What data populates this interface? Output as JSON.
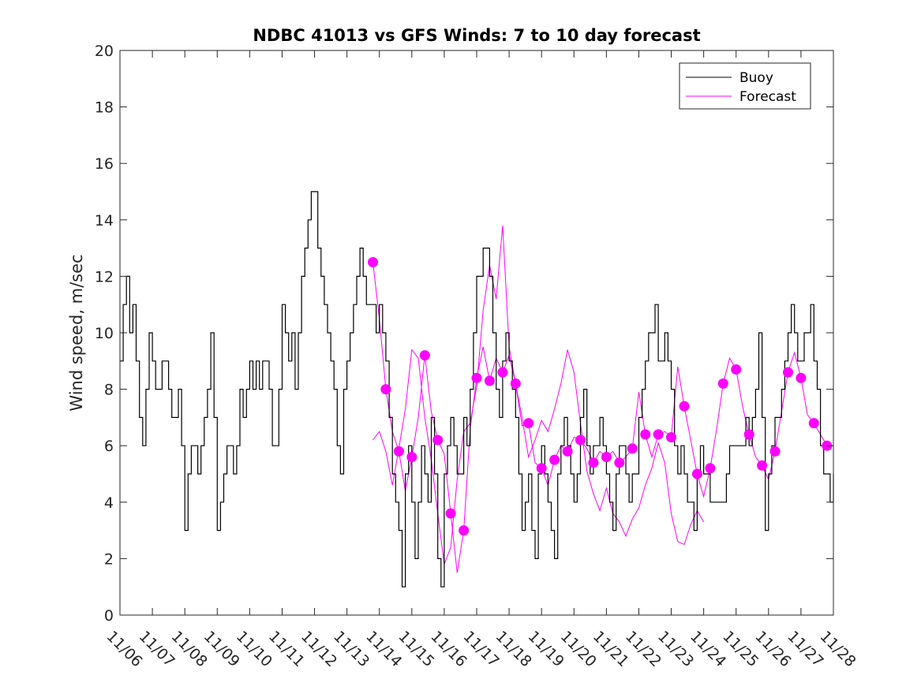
{
  "chart_data": {
    "type": "line",
    "title": "NDBC 41013 vs GFS Winds: 7 to 10 day forecast",
    "xlabel": "",
    "ylabel": "Wind speed, m/sec",
    "xlim": [
      0,
      22
    ],
    "ylim": [
      0,
      20
    ],
    "yticks": [
      0,
      2,
      4,
      6,
      8,
      10,
      12,
      14,
      16,
      18,
      20
    ],
    "xtick_labels": [
      "11/06",
      "11/07",
      "11/08",
      "11/09",
      "11/10",
      "11/11",
      "11/12",
      "11/13",
      "11/14",
      "11/15",
      "11/16",
      "11/17",
      "11/18",
      "11/19",
      "11/20",
      "11/21",
      "11/22",
      "11/23",
      "11/24",
      "11/25",
      "11/26",
      "11/27",
      "11/28"
    ],
    "legend": {
      "position": "top-right",
      "entries": [
        "Buoy",
        "Forecast"
      ]
    },
    "colors": {
      "buoy": "#000000",
      "forecast": "#ff00ff"
    },
    "series": [
      {
        "name": "Buoy",
        "x": [
          0,
          0.1,
          0.2,
          0.3,
          0.4,
          0.5,
          0.6,
          0.7,
          0.8,
          0.9,
          1,
          1.1,
          1.2,
          1.3,
          1.4,
          1.5,
          1.6,
          1.7,
          1.8,
          1.9,
          2,
          2.1,
          2.2,
          2.3,
          2.4,
          2.5,
          2.6,
          2.7,
          2.8,
          2.9,
          3,
          3.1,
          3.2,
          3.3,
          3.4,
          3.5,
          3.6,
          3.7,
          3.8,
          3.9,
          4,
          4.1,
          4.2,
          4.3,
          4.4,
          4.5,
          4.6,
          4.7,
          4.8,
          4.9,
          5,
          5.1,
          5.2,
          5.3,
          5.4,
          5.5,
          5.6,
          5.7,
          5.8,
          5.9,
          6,
          6.1,
          6.2,
          6.3,
          6.4,
          6.5,
          6.6,
          6.7,
          6.8,
          6.9,
          7,
          7.1,
          7.2,
          7.3,
          7.4,
          7.5,
          7.6,
          7.7,
          7.8,
          7.9,
          8,
          8.1,
          8.2,
          8.3,
          8.4,
          8.5,
          8.6,
          8.7,
          8.8,
          8.9,
          9,
          9.1,
          9.2,
          9.3,
          9.4,
          9.5,
          9.6,
          9.7,
          9.8,
          9.9,
          10,
          10.1,
          10.2,
          10.3,
          10.4,
          10.5,
          10.6,
          10.7,
          10.8,
          10.9,
          11,
          11.1,
          11.2,
          11.3,
          11.4,
          11.5,
          11.6,
          11.7,
          11.8,
          11.9,
          12,
          12.1,
          12.2,
          12.3,
          12.4,
          12.5,
          12.6,
          12.7,
          12.8,
          12.9,
          13,
          13.1,
          13.2,
          13.3,
          13.4,
          13.5,
          13.6,
          13.7,
          13.8,
          13.9,
          14,
          14.1,
          14.2,
          14.3,
          14.4,
          14.5,
          14.6,
          14.7,
          14.8,
          14.9,
          15,
          15.1,
          15.2,
          15.3,
          15.4,
          15.5,
          15.6,
          15.7,
          15.8,
          15.9,
          16,
          16.1,
          16.2,
          16.3,
          16.4,
          16.5,
          16.6,
          16.7,
          16.8,
          16.9,
          17,
          17.1,
          17.2,
          17.3,
          17.4,
          17.5,
          17.6,
          17.7,
          17.8,
          17.9,
          18,
          18.1,
          18.2,
          18.3,
          18.4,
          18.5,
          18.6,
          18.7,
          18.8,
          18.9,
          19,
          19.1,
          19.2,
          19.3,
          19.4,
          19.5,
          19.6,
          19.7,
          19.8,
          19.9,
          20,
          20.1,
          20.2,
          20.3,
          20.4,
          20.5,
          20.6,
          20.7,
          20.8,
          20.9,
          21,
          21.1,
          21.2,
          21.3,
          21.4,
          21.5,
          21.6,
          21.7,
          21.8,
          21.9,
          22
        ],
        "values": [
          9,
          11,
          12,
          10,
          11,
          9,
          7,
          6,
          8,
          10,
          9,
          8,
          8,
          9,
          9,
          8,
          7,
          7,
          8,
          6,
          3,
          5,
          6,
          6,
          5,
          6,
          7,
          8,
          10,
          7,
          3,
          4,
          5,
          6,
          6,
          5,
          6,
          8,
          7,
          8,
          9,
          8,
          9,
          8,
          9,
          9,
          8,
          6,
          6,
          8,
          11,
          10,
          9,
          10,
          8,
          10,
          12,
          13,
          14,
          15,
          15,
          13,
          12,
          11,
          10,
          9,
          8,
          6,
          5,
          8,
          9,
          10,
          11,
          12,
          13,
          12,
          11,
          11,
          11,
          10,
          11,
          10,
          9,
          7,
          5,
          4,
          3,
          1,
          5,
          6,
          4,
          2,
          4,
          6,
          5,
          4,
          7,
          5,
          2,
          1,
          5,
          6,
          7,
          6,
          5,
          5,
          7,
          6,
          8,
          10,
          12,
          12,
          13,
          13,
          12,
          10,
          8,
          7,
          9,
          10,
          9,
          8,
          7,
          5,
          3,
          4,
          5,
          3,
          2,
          5,
          6,
          5,
          4,
          3,
          2,
          5,
          6,
          7,
          6,
          5,
          4,
          5,
          7,
          8,
          6,
          5,
          6,
          6,
          7,
          6,
          5,
          4,
          3,
          5,
          6,
          6,
          5,
          4,
          5,
          5,
          7,
          8,
          9,
          10,
          10,
          11,
          9,
          9,
          10,
          9,
          8,
          6,
          5,
          6,
          5,
          4,
          4,
          3,
          5,
          6,
          5,
          5,
          4,
          4,
          4,
          4,
          4,
          5,
          6,
          6,
          6,
          6,
          6,
          7,
          6,
          7,
          8,
          10,
          7,
          3,
          5,
          6,
          7,
          7,
          8,
          9,
          10,
          11,
          10,
          9,
          9,
          10,
          10,
          11,
          9,
          8,
          6,
          5,
          5,
          4,
          5
        ]
      },
      {
        "name": "Forecast",
        "x": [
          7.8,
          8.0,
          8.2,
          8.4,
          8.6,
          8.8,
          9.0,
          9.2,
          9.4,
          9.6,
          9.8,
          10.0,
          10.2,
          10.4,
          10.6,
          10.8,
          11.0,
          11.2,
          11.4,
          11.6,
          11.8,
          12.0,
          12.2,
          12.4,
          12.6,
          12.8,
          13.0,
          13.2,
          13.4,
          13.6,
          13.8,
          14.0,
          14.2,
          14.4,
          14.6,
          14.8,
          15.0,
          15.2,
          15.4,
          15.6,
          15.8,
          16.0,
          16.2,
          16.4,
          16.6,
          16.8,
          17.0,
          17.2,
          17.4,
          17.6,
          17.8,
          18.0,
          18.2,
          18.4,
          18.6,
          18.8,
          19.0,
          19.2,
          19.4,
          19.6,
          19.8,
          20.0,
          20.2,
          20.4,
          20.6,
          20.8,
          21.0,
          21.2,
          21.4,
          21.6,
          21.8,
          22.0
        ],
        "values": [
          12.5,
          10.5,
          8.0,
          6.5,
          5.8,
          4.4,
          5.6,
          7.0,
          9.2,
          7.2,
          6.2,
          5.7,
          3.6,
          1.5,
          3.0,
          6.6,
          8.4,
          9.5,
          8.3,
          9.1,
          8.6,
          9.2,
          8.2,
          6.7,
          6.8,
          5.4,
          5.2,
          4.6,
          5.5,
          6.0,
          5.8,
          6.3,
          6.2,
          5.9,
          5.4,
          5.8,
          5.6,
          5.8,
          5.4,
          5.6,
          5.9,
          7.9,
          6.4,
          5.6,
          6.4,
          6.5,
          6.3,
          8.8,
          7.4,
          6.2,
          5.0,
          4.2,
          5.2,
          6.6,
          8.2,
          9.1,
          8.7,
          7.4,
          6.4,
          5.6,
          5.3,
          4.8,
          5.8,
          7.2,
          8.6,
          9.3,
          8.4,
          7.1,
          6.8,
          6.4,
          6.0,
          6.0
        ]
      },
      {
        "name": "Forecast",
        "x": [
          7.8,
          8.0,
          8.2,
          8.4,
          8.6,
          8.8,
          9.0,
          9.2,
          9.4,
          9.6,
          9.8,
          10.0,
          10.2,
          10.4,
          10.6,
          10.8,
          11.0,
          11.2,
          11.4,
          11.6,
          11.8,
          12.0,
          12.2,
          12.4,
          12.6,
          12.8,
          13.0,
          13.2,
          13.4,
          13.6,
          13.8,
          14.0,
          14.2,
          14.4,
          14.6,
          14.8,
          15.0,
          15.2,
          15.4,
          15.6,
          15.8,
          16.0,
          16.2,
          16.4,
          16.6,
          16.8,
          17.0,
          17.2,
          17.4,
          17.6,
          17.8,
          18.0
        ],
        "values": [
          6.2,
          6.5,
          5.8,
          4.6,
          5.9,
          7.3,
          9.4,
          9.1,
          7.0,
          5.5,
          3.6,
          1.8,
          2.4,
          4.8,
          6.5,
          6.8,
          8.1,
          10.8,
          12.4,
          11.2,
          13.8,
          9.5,
          8.2,
          7.0,
          5.6,
          6.2,
          6.9,
          6.5,
          7.3,
          8.2,
          9.4,
          8.6,
          6.8,
          5.1,
          4.3,
          3.7,
          4.5,
          3.6,
          3.3,
          2.8,
          3.4,
          3.8,
          4.6,
          5.2,
          6.1,
          5.4,
          3.6,
          2.6,
          2.5,
          3.2,
          3.7,
          3.3
        ]
      }
    ]
  }
}
